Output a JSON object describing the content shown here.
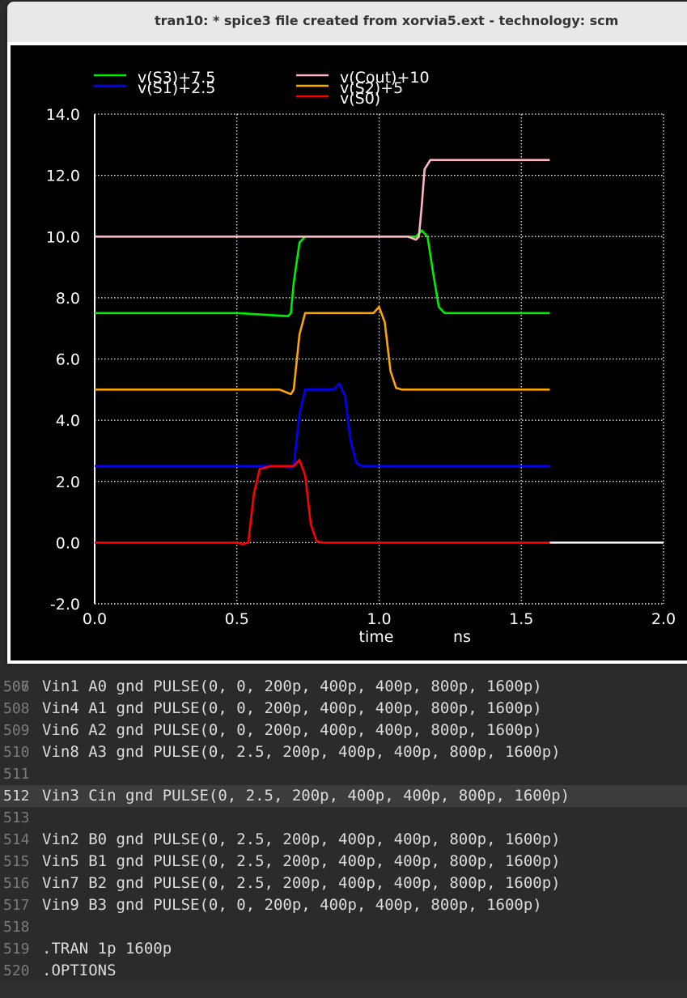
{
  "window": {
    "title": "tran10: * spice3 file created from xorvia5.ext - technology: scm"
  },
  "editor": {
    "partial_line_number": "506",
    "lines": [
      {
        "num": "507",
        "text": "Vin1 A0 gnd PULSE(0, 0, 200p, 400p, 400p, 800p, 1600p)"
      },
      {
        "num": "508",
        "text": "Vin4 A1 gnd PULSE(0, 0, 200p, 400p, 400p, 800p, 1600p)"
      },
      {
        "num": "509",
        "text": "Vin6 A2 gnd PULSE(0, 0, 200p, 400p, 400p, 800p, 1600p)"
      },
      {
        "num": "510",
        "text": "Vin8 A3 gnd PULSE(0, 2.5, 200p, 400p, 400p, 800p, 1600p)"
      },
      {
        "num": "511",
        "text": ""
      },
      {
        "num": "512",
        "text": "Vin3 Cin gnd PULSE(0, 2.5, 200p, 400p, 400p, 800p, 1600p)",
        "current": true
      },
      {
        "num": "513",
        "text": ""
      },
      {
        "num": "514",
        "text": "Vin2 B0 gnd PULSE(0, 2.5, 200p, 400p, 400p, 800p, 1600p)"
      },
      {
        "num": "515",
        "text": "Vin5 B1 gnd PULSE(0, 2.5, 200p, 400p, 400p, 800p, 1600p)"
      },
      {
        "num": "516",
        "text": "Vin7 B2 gnd PULSE(0, 2.5, 200p, 400p, 400p, 800p, 1600p)"
      },
      {
        "num": "517",
        "text": "Vin9 B3 gnd PULSE(0, 0, 200p, 400p, 400p, 800p, 1600p)"
      },
      {
        "num": "518",
        "text": ""
      },
      {
        "num": "519",
        "text": ".TRAN 1p 1600p"
      },
      {
        "num": "520",
        "text": ".OPTIONS"
      }
    ]
  },
  "chart_data": {
    "type": "line",
    "title": "",
    "xlabel": "time",
    "xunit": "ns",
    "ylabel": "",
    "xlim": [
      0.0,
      2.0
    ],
    "ylim": [
      -2.0,
      14.0
    ],
    "xticks": [
      "0.0",
      "0.5",
      "1.0",
      "1.5",
      "2.0"
    ],
    "yticks": [
      "14.0",
      "12.0",
      "10.0",
      "8.0",
      "6.0",
      "4.0",
      "2.0",
      "0.0",
      "-2.0"
    ],
    "ytick_values": [
      14,
      12,
      10,
      8,
      6,
      4,
      2,
      0,
      -2
    ],
    "xtick_values": [
      0,
      0.5,
      1.0,
      1.5,
      2.0
    ],
    "grid": true,
    "legend_position": "top",
    "background": "#000000",
    "series": [
      {
        "name": "v(S3)+7.5",
        "color": "#00ee00",
        "x": [
          0,
          0.5,
          0.68,
          0.69,
          0.7,
          0.72,
          0.74,
          0.76,
          0.8,
          1.0,
          1.1,
          1.13,
          1.15,
          1.17,
          1.19,
          1.21,
          1.23,
          1.25,
          1.6
        ],
        "y": [
          7.5,
          7.5,
          7.4,
          7.5,
          8.5,
          9.8,
          10.0,
          10.0,
          10.0,
          10.0,
          10.0,
          10.0,
          10.2,
          10.0,
          8.8,
          7.7,
          7.5,
          7.5,
          7.5
        ]
      },
      {
        "name": "v(S1)+2.5",
        "color": "#0000ff",
        "x": [
          0,
          0.65,
          0.69,
          0.7,
          0.72,
          0.74,
          0.78,
          0.84,
          0.86,
          0.88,
          0.9,
          0.92,
          0.94,
          0.96,
          1.6
        ],
        "y": [
          2.5,
          2.5,
          2.45,
          2.5,
          4.2,
          5.0,
          5.0,
          5.0,
          5.2,
          4.8,
          3.3,
          2.6,
          2.5,
          2.5,
          2.5
        ]
      },
      {
        "name": "v(Cout)+10",
        "color": "#ffb6c1",
        "x": [
          0,
          0.7,
          1.1,
          1.13,
          1.14,
          1.15,
          1.16,
          1.18,
          1.2,
          1.6
        ],
        "y": [
          10.0,
          10.0,
          10.0,
          9.9,
          10.0,
          11.0,
          12.2,
          12.5,
          12.5,
          12.5
        ]
      },
      {
        "name": "v(S2)+5",
        "color": "#ffa500",
        "x": [
          0,
          0.65,
          0.69,
          0.7,
          0.72,
          0.74,
          0.8,
          0.98,
          1.0,
          1.02,
          1.04,
          1.06,
          1.08,
          1.6
        ],
        "y": [
          5.0,
          5.0,
          4.85,
          5.0,
          6.8,
          7.5,
          7.5,
          7.5,
          7.7,
          7.2,
          5.6,
          5.05,
          5.0,
          5.0
        ]
      },
      {
        "name": "v(S0)",
        "color": "#ff0000",
        "x": [
          0,
          0.5,
          0.52,
          0.54,
          0.56,
          0.58,
          0.62,
          0.68,
          0.7,
          0.72,
          0.74,
          0.76,
          0.78,
          0.8,
          1.6
        ],
        "y": [
          0.0,
          0.0,
          -0.05,
          0.0,
          1.6,
          2.4,
          2.5,
          2.5,
          2.5,
          2.7,
          2.2,
          0.6,
          0.05,
          0.0,
          0.0
        ]
      }
    ],
    "baseline": {
      "color": "#ffffff",
      "value": 0.0
    }
  }
}
